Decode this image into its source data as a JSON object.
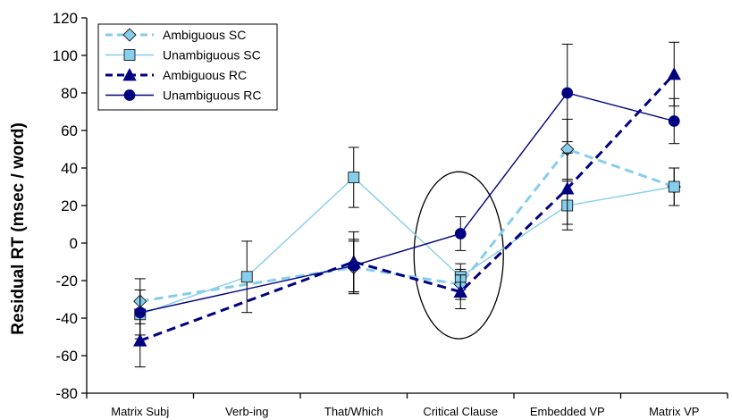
{
  "chart_data": {
    "type": "line",
    "title": "",
    "xlabel": "",
    "ylabel": "Residual RT (msec / word)",
    "ylim": [
      -80,
      120
    ],
    "yticks": [
      120,
      100,
      80,
      60,
      40,
      20,
      0,
      -20,
      -40,
      -60,
      -80
    ],
    "grid": false,
    "legend_position": "top-left",
    "categories": [
      "Matrix Subj",
      "Verb-ing",
      "That/Which",
      "Critical Clause",
      "Embedded VP",
      "Matrix VP"
    ],
    "annotation": "ellipse around Critical Clause",
    "series": [
      {
        "name": "Ambiguous SC",
        "color": "#87CEEB",
        "dashed": true,
        "marker": "diamond",
        "values": [
          -31,
          null,
          -13,
          -22,
          50,
          30
        ],
        "errors": [
          12,
          null,
          14,
          8,
          16,
          10
        ]
      },
      {
        "name": "Unambiguous SC",
        "color": "#87CEEB",
        "dashed": false,
        "marker": "square",
        "values": [
          -38,
          -18,
          35,
          -18,
          20,
          30
        ],
        "errors": [
          13,
          19,
          16,
          7,
          13,
          10
        ]
      },
      {
        "name": "Ambiguous RC",
        "color": "#000080",
        "dashed": true,
        "marker": "triangle",
        "values": [
          -52,
          null,
          -10,
          -26,
          29,
          90
        ],
        "errors": [
          14,
          null,
          16,
          9,
          19,
          17
        ]
      },
      {
        "name": "Unambiguous RC",
        "color": "#000080",
        "dashed": false,
        "marker": "circle",
        "values": [
          -37,
          null,
          -12,
          5,
          80,
          65
        ],
        "errors": [
          12,
          null,
          14,
          9,
          26,
          12
        ]
      }
    ]
  }
}
